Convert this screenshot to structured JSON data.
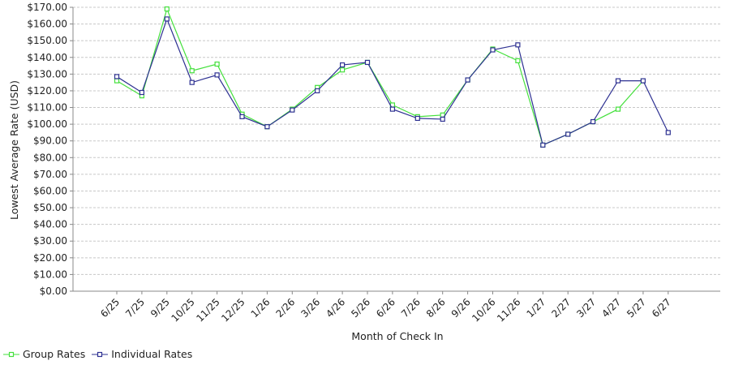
{
  "chart_data": {
    "type": "line",
    "xlabel": "Month of Check In",
    "ylabel": "Lowest Average Rate (USD)",
    "ylim": [
      0,
      170
    ],
    "ytick_step": 10,
    "ytick_labels": [
      "$0.00",
      "$10.00",
      "$20.00",
      "$30.00",
      "$40.00",
      "$50.00",
      "$60.00",
      "$70.00",
      "$80.00",
      "$90.00",
      "$100.00",
      "$110.00",
      "$120.00",
      "$130.00",
      "$140.00",
      "$150.00",
      "$160.00",
      "$170.00"
    ],
    "categories": [
      "6/25",
      "7/25",
      "9/25",
      "10/25",
      "11/25",
      "12/25",
      "1/26",
      "2/26",
      "3/26",
      "4/26",
      "5/26",
      "6/26",
      "7/26",
      "8/26",
      "9/26",
      "10/26",
      "11/26",
      "1/27",
      "2/27",
      "3/27",
      "4/27",
      "5/27",
      "6/27"
    ],
    "grid": true,
    "legend_position": "bottom-left",
    "series": [
      {
        "name": "Group Rates",
        "color": "#44e03c",
        "values": [
          126,
          117,
          169,
          132,
          136,
          106,
          98.5,
          109,
          122,
          132.5,
          137,
          111.5,
          104.5,
          105.5,
          126.5,
          145,
          138,
          87.5,
          94,
          101.5,
          109,
          126,
          null
        ]
      },
      {
        "name": "Individual Rates",
        "color": "#2e3192",
        "values": [
          128.5,
          119,
          163,
          125,
          129.5,
          104.5,
          98.5,
          108.5,
          120,
          135.5,
          137,
          109,
          103.5,
          103,
          126.5,
          144.5,
          147.5,
          87.5,
          94,
          101.5,
          126,
          126,
          95
        ]
      }
    ]
  }
}
